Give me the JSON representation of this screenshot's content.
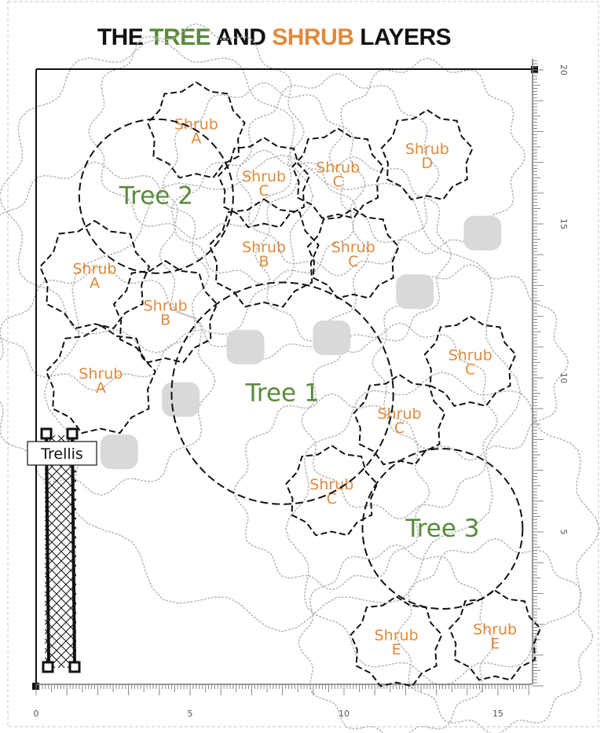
{
  "title": {
    "part1": "THE ",
    "tree": "TREE",
    "part2": " AND ",
    "shrub": "SHRUB",
    "part3": " LAYERS"
  },
  "colors": {
    "tree": "#5a8a3c",
    "shrub": "#e08a3c",
    "ink": "#111111",
    "guide": "#b8b8b8",
    "stone": "#d9d9d9"
  },
  "trellis_label": "Trellis",
  "x_axis": {
    "ticks": [
      "0",
      "5",
      "10",
      "15"
    ]
  },
  "y_axis": {
    "ticks": [
      "5",
      "10",
      "15",
      "20"
    ]
  },
  "trees": [
    {
      "id": "tree-1",
      "line1": "Tree",
      "line2": "1",
      "cx": 8,
      "cy": 9.5,
      "r": 3.6
    },
    {
      "id": "tree-2",
      "line1": "Tree",
      "line2": "2",
      "cx": 3.9,
      "cy": 15.9,
      "r": 2.5
    },
    {
      "id": "tree-3",
      "line1": "Tree",
      "line2": "3",
      "cx": 13.2,
      "cy": 5.1,
      "r": 2.6
    }
  ],
  "shrubs": [
    {
      "id": "shrub-a-top",
      "line1": "Shrub",
      "line2": "A",
      "cx": 5.2,
      "cy": 18.0,
      "r": 1.6
    },
    {
      "id": "shrub-a-mid",
      "line1": "Shrub",
      "line2": "A",
      "cx": 1.9,
      "cy": 13.3,
      "r": 1.8
    },
    {
      "id": "shrub-a-low",
      "line1": "Shrub",
      "line2": "A",
      "cx": 2.1,
      "cy": 9.9,
      "r": 1.8
    },
    {
      "id": "shrub-b-mid",
      "line1": "Shrub",
      "line2": "B",
      "cx": 7.4,
      "cy": 14.0,
      "r": 1.8
    },
    {
      "id": "shrub-b-left",
      "line1": "Shrub",
      "line2": "B",
      "cx": 4.2,
      "cy": 12.1,
      "r": 1.7
    },
    {
      "id": "shrub-c-1",
      "line1": "Shrub",
      "line2": "C",
      "cx": 7.4,
      "cy": 16.3,
      "r": 1.5
    },
    {
      "id": "shrub-c-2",
      "line1": "Shrub",
      "line2": "C",
      "cx": 9.8,
      "cy": 16.6,
      "r": 1.5
    },
    {
      "id": "shrub-c-3",
      "line1": "Shrub",
      "line2": "C",
      "cx": 10.3,
      "cy": 14.0,
      "r": 1.5
    },
    {
      "id": "shrub-c-4",
      "line1": "Shrub",
      "line2": "C",
      "cx": 14.1,
      "cy": 10.5,
      "r": 1.5
    },
    {
      "id": "shrub-c-5",
      "line1": "Shrub",
      "line2": "C",
      "cx": 11.8,
      "cy": 8.6,
      "r": 1.5
    },
    {
      "id": "shrub-c-6",
      "line1": "Shrub",
      "line2": "C",
      "cx": 9.6,
      "cy": 6.3,
      "r": 1.5
    },
    {
      "id": "shrub-d",
      "line1": "Shrub",
      "line2": "D",
      "cx": 12.7,
      "cy": 17.2,
      "r": 1.5
    },
    {
      "id": "shrub-e-1",
      "line1": "Shrub",
      "line2": "E",
      "cx": 11.7,
      "cy": 1.4,
      "r": 1.5
    },
    {
      "id": "shrub-e-2",
      "line1": "Shrub",
      "line2": "E",
      "cx": 14.9,
      "cy": 1.6,
      "r": 1.5
    }
  ],
  "stones": [
    {
      "x": 2.7,
      "y": 7.6
    },
    {
      "x": 4.7,
      "y": 9.3
    },
    {
      "x": 6.8,
      "y": 11.0
    },
    {
      "x": 9.6,
      "y": 11.3
    },
    {
      "x": 12.3,
      "y": 12.8
    },
    {
      "x": 14.5,
      "y": 14.7
    }
  ],
  "guide_circles": [
    {
      "cx": 3.9,
      "cy": 15.9,
      "r": 4.8
    },
    {
      "cx": 5.2,
      "cy": 18.0,
      "r": 3.3
    },
    {
      "cx": 7.4,
      "cy": 16.3,
      "r": 3.1
    },
    {
      "cx": 9.8,
      "cy": 16.6,
      "r": 3.1
    },
    {
      "cx": 12.7,
      "cy": 17.2,
      "r": 3.0
    },
    {
      "cx": 1.9,
      "cy": 13.3,
      "r": 3.5
    },
    {
      "cx": 2.1,
      "cy": 9.9,
      "r": 3.5
    },
    {
      "cx": 7.4,
      "cy": 14.0,
      "r": 3.2
    },
    {
      "cx": 10.3,
      "cy": 14.0,
      "r": 3.0
    },
    {
      "cx": 8.0,
      "cy": 9.5,
      "r": 7.3
    },
    {
      "cx": 14.1,
      "cy": 10.5,
      "r": 3.0
    },
    {
      "cx": 11.8,
      "cy": 8.6,
      "r": 3.0
    },
    {
      "cx": 9.6,
      "cy": 6.3,
      "r": 3.0
    },
    {
      "cx": 13.2,
      "cy": 5.1,
      "r": 4.8
    },
    {
      "cx": 11.7,
      "cy": 1.4,
      "r": 3.0
    },
    {
      "cx": 14.9,
      "cy": 1.6,
      "r": 3.0
    }
  ]
}
